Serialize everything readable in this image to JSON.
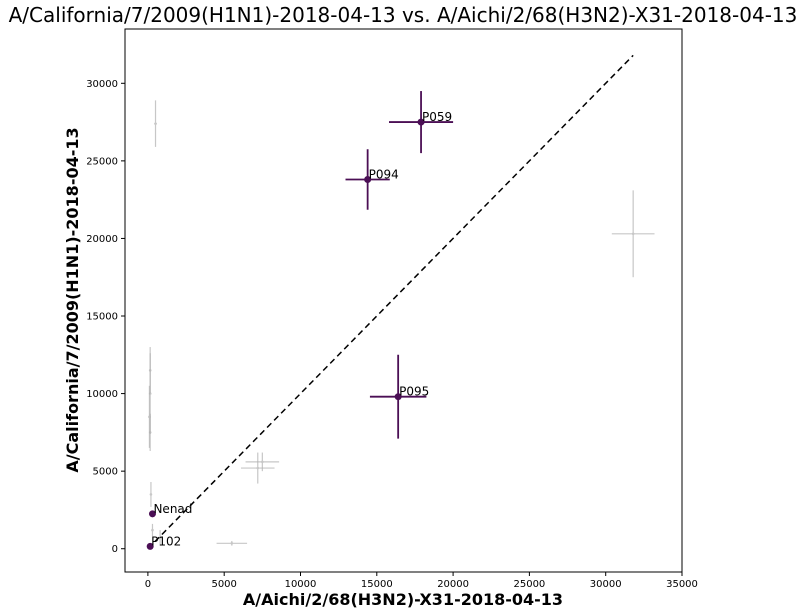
{
  "chart_data": {
    "type": "scatter",
    "title": "A/California/7/2009(H1N1)-2018-04-13 vs. A/Aichi/2/68(H3N2)-X31-2018-04-13",
    "xlabel": "A/Aichi/2/68(H3N2)-X31-2018-04-13",
    "ylabel": "A/California/7/2009(H1N1)-2018-04-13",
    "xlim": [
      -1500,
      35000
    ],
    "ylim": [
      -1500,
      33500
    ],
    "xticks": [
      0,
      5000,
      10000,
      15000,
      20000,
      25000,
      30000,
      35000
    ],
    "yticks": [
      0,
      5000,
      10000,
      15000,
      20000,
      25000,
      30000
    ],
    "diagonal": {
      "from": [
        0,
        0
      ],
      "to": [
        31800,
        31800
      ],
      "style": "dashed",
      "color": "#000000"
    },
    "highlight_color": "#4b0f55",
    "background_color": "#b0b0b0",
    "highlighted": [
      {
        "label": "P059",
        "x": 17900,
        "y": 27500,
        "xerr": 2100,
        "yerr": 2000
      },
      {
        "label": "P094",
        "x": 14400,
        "y": 23800,
        "xerr": 1450,
        "yerr": 1950
      },
      {
        "label": "P095",
        "x": 16400,
        "y": 9800,
        "xerr": 1850,
        "yerr": 2700
      },
      {
        "label": "Nenad",
        "x": 300,
        "y": 2250,
        "xerr": 150,
        "yerr": 200
      },
      {
        "label": "P102",
        "x": 150,
        "y": 150,
        "xerr": 120,
        "yerr": 120
      }
    ],
    "background": [
      {
        "x": 31800,
        "y": 20300,
        "xerr": 1400,
        "yerr": 2800
      },
      {
        "x": 7200,
        "y": 5200,
        "xerr": 1100,
        "yerr": 1000
      },
      {
        "x": 7500,
        "y": 5600,
        "xerr": 1100,
        "yerr": 600
      },
      {
        "x": 5500,
        "y": 350,
        "xerr": 1000,
        "yerr": 150
      },
      {
        "x": 500,
        "y": 27400,
        "xerr": 80,
        "yerr": 1500
      },
      {
        "x": 150,
        "y": 10000,
        "xerr": 60,
        "yerr": 2600
      },
      {
        "x": 100,
        "y": 8500,
        "xerr": 60,
        "yerr": 2000
      },
      {
        "x": 150,
        "y": 7500,
        "xerr": 60,
        "yerr": 1200
      },
      {
        "x": 200,
        "y": 3500,
        "xerr": 60,
        "yerr": 800
      },
      {
        "x": 800,
        "y": 700,
        "xerr": 100,
        "yerr": 500
      },
      {
        "x": 300,
        "y": 1200,
        "xerr": 60,
        "yerr": 400
      },
      {
        "x": 150,
        "y": 11500,
        "xerr": 60,
        "yerr": 1500
      }
    ]
  }
}
